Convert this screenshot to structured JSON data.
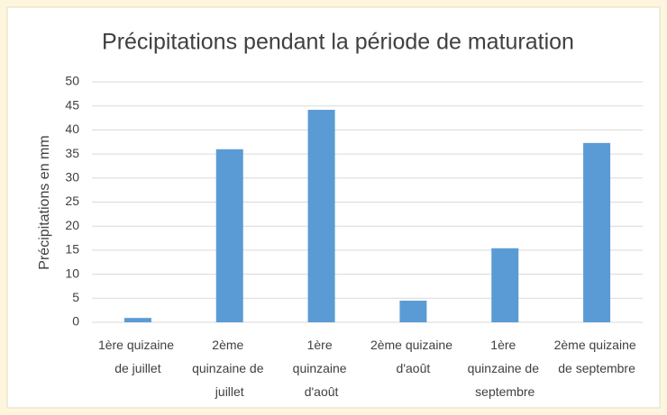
{
  "chart_data": {
    "type": "bar",
    "title": "Précipitations pendant la période de maturation",
    "y_label": "Précipitations en mm",
    "categories": [
      "1ère quizaine de juillet",
      "2ème quinzaine de juillet",
      "1ère quinzaine d'août",
      "2ème quizaine d'août",
      "1ère quinzaine de septembre",
      "2ème quizaine de septembre"
    ],
    "values": [
      0.9,
      36,
      44.2,
      4.5,
      15.4,
      37.3
    ],
    "color": "#5b9bd5",
    "ylim": [
      0,
      50
    ],
    "yticks": [
      0,
      5,
      10,
      15,
      20,
      25,
      30,
      35,
      40,
      45,
      50
    ],
    "grid": true
  }
}
